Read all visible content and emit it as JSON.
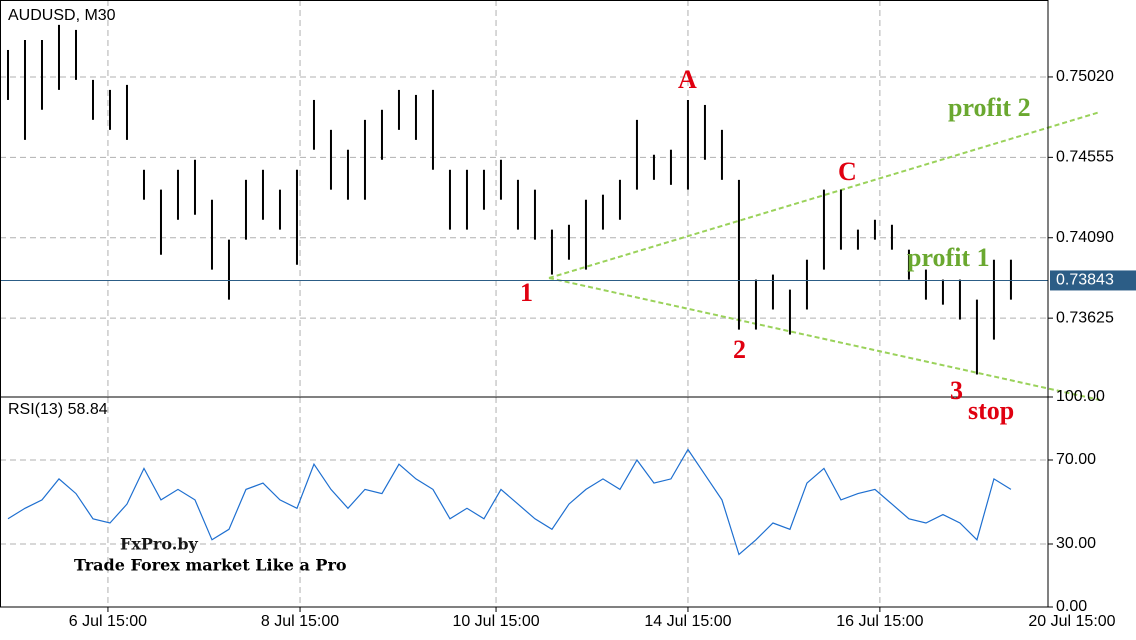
{
  "chart_data": [
    {
      "type": "hl-bar",
      "title": "AUDUSD, M30",
      "color": "#000000",
      "grid": true,
      "high": [
        0.75176,
        0.75234,
        0.75234,
        0.75321,
        0.75292,
        0.75003,
        0.74945,
        0.74974,
        0.74483,
        0.74368,
        0.74483,
        0.74541,
        0.7431,
        0.74079,
        0.74425,
        0.74483,
        0.74368,
        0.74483,
        0.74887,
        0.74714,
        0.74599,
        0.74772,
        0.7483,
        0.74945,
        0.74916,
        0.74945,
        0.74483,
        0.74483,
        0.74483,
        0.74541,
        0.74425,
        0.74368,
        0.74137,
        0.74165,
        0.7431,
        0.74339,
        0.74425,
        0.74772,
        0.7457,
        0.74599,
        0.74887,
        0.74858,
        0.74714,
        0.74425,
        0.73848,
        0.73877,
        0.7379,
        0.73963,
        0.74368,
        0.74368,
        0.74137,
        0.74194,
        0.74165,
        0.74021,
        0.73906,
        0.73848,
        0.73848,
        0.73732,
        0.73963,
        0.73963
      ],
      "low": [
        0.74887,
        0.74656,
        0.7483,
        0.74945,
        0.75003,
        0.74772,
        0.74714,
        0.74656,
        0.7431,
        0.73992,
        0.74194,
        0.74223,
        0.73906,
        0.73732,
        0.74079,
        0.74194,
        0.74137,
        0.73934,
        0.74599,
        0.74368,
        0.7431,
        0.7431,
        0.74541,
        0.74714,
        0.74656,
        0.74483,
        0.74137,
        0.74137,
        0.74252,
        0.7431,
        0.74137,
        0.74079,
        0.73877,
        0.73963,
        0.73906,
        0.74137,
        0.74194,
        0.74368,
        0.74425,
        0.74396,
        0.74368,
        0.74541,
        0.74425,
        0.73559,
        0.73559,
        0.73675,
        0.7353,
        0.73675,
        0.73906,
        0.74021,
        0.74021,
        0.74079,
        0.74021,
        0.73848,
        0.73732,
        0.73703,
        0.73617,
        0.73299,
        0.73501,
        0.73732
      ],
      "xlim": [
        -0.47,
        61.18
      ],
      "ylim": [
        0.73169,
        0.75465
      ],
      "yticks": [
        {
          "value": 0.7502,
          "label": "0.75020"
        },
        0.74555,
        {
          "value": 0.7409,
          "label": "0.74090"
        },
        0.73625
      ],
      "last_price": 0.73843,
      "annotations": [
        "A",
        "C",
        "1",
        "2",
        "3",
        "stop",
        "profit 1",
        "profit 2"
      ]
    },
    {
      "type": "line",
      "title": "RSI(13) 58.84",
      "grid": true,
      "series": [
        {
          "color": "#1e6fd0",
          "values": [
            42,
            47,
            51,
            61,
            54,
            42,
            40,
            49,
            66,
            51,
            56,
            51,
            32,
            37,
            56,
            59,
            51,
            47,
            68,
            56,
            47,
            56,
            54,
            68,
            61,
            56,
            42,
            47,
            42,
            56,
            49,
            42,
            37,
            49,
            56,
            61,
            56,
            70,
            59,
            61,
            75,
            63,
            51,
            25,
            32,
            40,
            37,
            59,
            66,
            51,
            54,
            56,
            49,
            42,
            40,
            44,
            40,
            32,
            61,
            56
          ]
        }
      ],
      "xlim": [
        -0.47,
        61.18
      ],
      "ylim": [
        0,
        100
      ],
      "yticks": [
        {
          "value": 100,
          "label": "100.00"
        },
        {
          "value": 70,
          "label": "70.00"
        },
        {
          "value": 30,
          "label": "30.00"
        },
        {
          "value": 0,
          "label": "0.00"
        }
      ],
      "xticks": [
        {
          "value": 5.88,
          "label": "6 Jul 15:00"
        },
        {
          "value": 17.18,
          "label": "8 Jul 15:00"
        },
        {
          "value": 28.71,
          "label": "10 Jul 15:00"
        },
        {
          "value": 40.0,
          "label": "14 Jul 15:00"
        },
        {
          "value": 51.29,
          "label": "16 Jul 15:00"
        },
        {
          "value": 62.59,
          "label": "20 Jul 15:00"
        }
      ]
    }
  ],
  "watermark": {
    "logo": "FxPro.by",
    "slogan": "Trade Forex market Like a Pro"
  }
}
